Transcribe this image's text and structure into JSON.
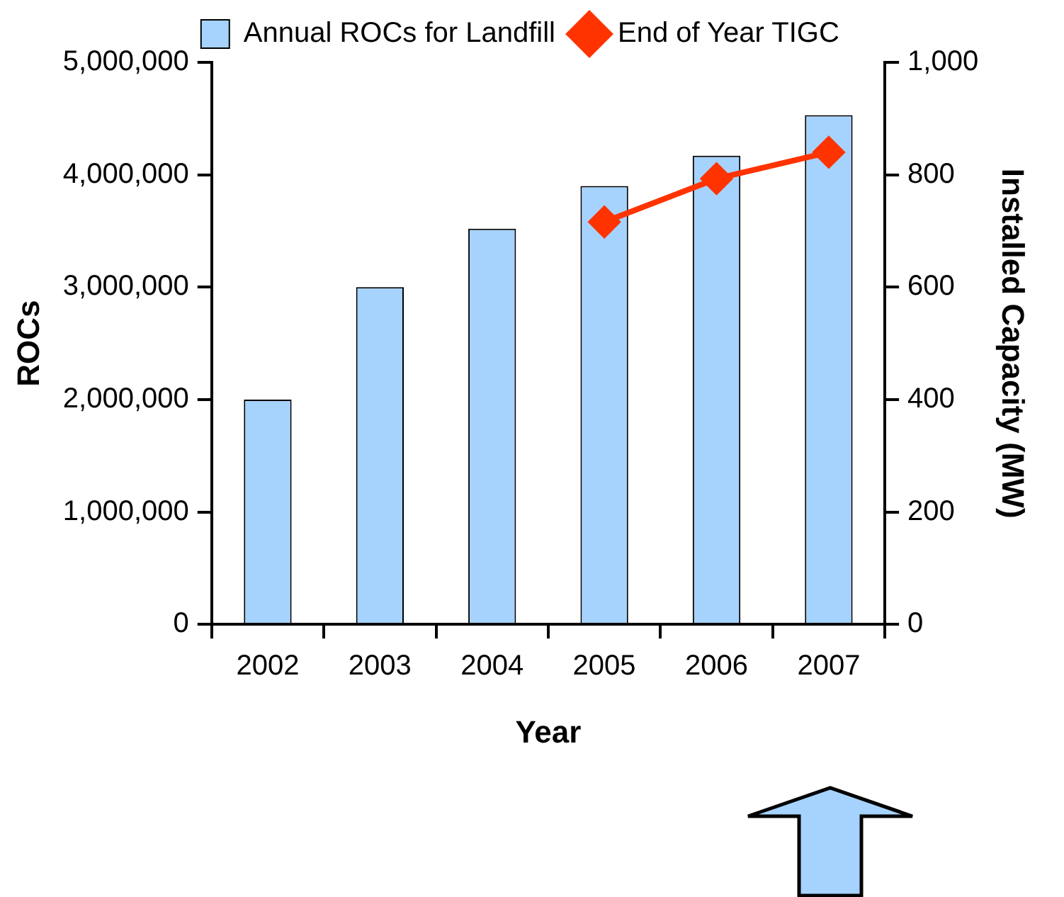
{
  "chart_data": {
    "type": "bar",
    "xlabel": "Year",
    "ylabel": "ROCs",
    "y2label": "Installed Capacity (MW)",
    "categories": [
      "2002",
      "2003",
      "2004",
      "2005",
      "2006",
      "2007"
    ],
    "series": [
      {
        "name": "Annual ROCs for Landfill",
        "color": "#a6d2fe",
        "values": [
          2000000,
          3000000,
          3520000,
          3900000,
          4170000,
          4530000
        ]
      },
      {
        "name": "End of Year TIGC",
        "type": "line",
        "axis": "y2",
        "color": "#ff3300",
        "values": [
          null,
          null,
          null,
          716,
          793,
          840
        ]
      }
    ],
    "ylim": [
      0,
      5000000
    ],
    "yticks": [
      0,
      {
        "value": 1000000,
        "label": "1,000,000"
      },
      {
        "value": 2000000,
        "label": "2,000,000"
      },
      {
        "value": 3000000,
        "label": "3,000,000"
      },
      {
        "value": 4000000,
        "label": "4,000,000"
      },
      {
        "value": 5000000,
        "label": "5,000,000"
      }
    ],
    "y2lim": [
      0,
      1000
    ],
    "y2ticks": [
      0,
      200,
      400,
      600,
      800,
      {
        "value": 1000,
        "label": "1,000"
      }
    ],
    "legend": "top",
    "marker": "diamond",
    "grid": false
  }
}
